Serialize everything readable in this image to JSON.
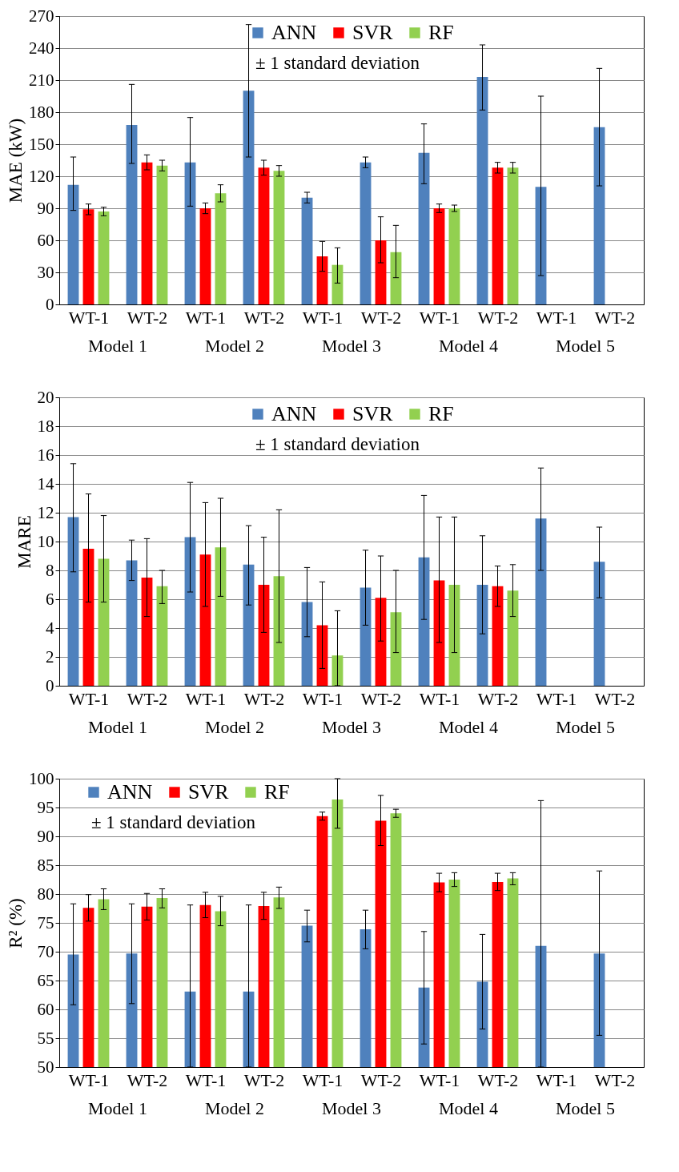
{
  "chart_data": [
    {
      "type": "bar",
      "ylabel": "MAE (kW)",
      "categories": [
        "WT-1",
        "WT-2",
        "WT-1",
        "WT-2",
        "WT-1",
        "WT-2",
        "WT-1",
        "WT-2",
        "WT-1",
        "WT-2"
      ],
      "annotations": [
        "± 1 standard deviation",
        "Model 1",
        "Model 2",
        "Model 3",
        "Model 4",
        "Model 5"
      ],
      "ylim": [
        0,
        270
      ],
      "yticks": [
        0,
        30,
        60,
        90,
        120,
        150,
        180,
        210,
        240,
        270
      ],
      "grid": "y",
      "legend": "top",
      "series": [
        {
          "name": "ANN",
          "color": "#4f81bd",
          "values": [
            112,
            168,
            133,
            200,
            100,
            133,
            142,
            213,
            110,
            166
          ],
          "errors": [
            [
              88,
              138
            ],
            [
              132,
              206
            ],
            [
              92,
              175
            ],
            [
              138,
              262
            ],
            [
              95,
              105
            ],
            [
              128,
              138
            ],
            [
              113,
              169
            ],
            [
              182,
              243
            ],
            [
              27,
              195
            ],
            [
              111,
              221
            ]
          ]
        },
        {
          "name": "SVR",
          "color": "#ff0000",
          "values": [
            89,
            133,
            90,
            128,
            45,
            60,
            90,
            128,
            null,
            null
          ],
          "errors": [
            [
              84,
              94
            ],
            [
              126,
              140
            ],
            [
              85,
              95
            ],
            [
              121,
              135
            ],
            [
              31,
              59
            ],
            [
              39,
              82
            ],
            [
              86,
              94
            ],
            [
              123,
              133
            ],
            null,
            null
          ]
        },
        {
          "name": "RF",
          "color": "#92d050",
          "values": [
            87,
            130,
            104,
            125,
            37,
            49,
            90,
            128,
            null,
            null
          ],
          "errors": [
            [
              83,
              91
            ],
            [
              125,
              135
            ],
            [
              96,
              112
            ],
            [
              120,
              130
            ],
            [
              20,
              53
            ],
            [
              25,
              74
            ],
            [
              87,
              93
            ],
            [
              123,
              133
            ],
            null,
            null
          ]
        }
      ]
    },
    {
      "type": "bar",
      "ylabel": "MARE",
      "categories": [
        "WT-1",
        "WT-2",
        "WT-1",
        "WT-2",
        "WT-1",
        "WT-2",
        "WT-1",
        "WT-2",
        "WT-1",
        "WT-2"
      ],
      "annotations": [
        "± 1 standard deviation",
        "Model 1",
        "Model 2",
        "Model 3",
        "Model 4",
        "Model 5"
      ],
      "ylim": [
        0,
        20
      ],
      "yticks": [
        0,
        2,
        4,
        6,
        8,
        10,
        12,
        14,
        16,
        18,
        20
      ],
      "grid": "y",
      "legend": "top",
      "series": [
        {
          "name": "ANN",
          "color": "#4f81bd",
          "values": [
            11.7,
            8.7,
            10.3,
            8.4,
            5.8,
            6.8,
            8.9,
            7.0,
            11.6,
            8.6
          ],
          "errors": [
            [
              7.9,
              15.4
            ],
            [
              7.3,
              10.1
            ],
            [
              6.5,
              14.1
            ],
            [
              5.6,
              11.1
            ],
            [
              3.4,
              8.2
            ],
            [
              4.2,
              9.4
            ],
            [
              4.6,
              13.2
            ],
            [
              3.6,
              10.4
            ],
            [
              8.0,
              15.1
            ],
            [
              6.1,
              11.0
            ]
          ]
        },
        {
          "name": "SVR",
          "color": "#ff0000",
          "values": [
            9.5,
            7.5,
            9.1,
            7.0,
            4.2,
            6.1,
            7.3,
            6.9,
            null,
            null
          ],
          "errors": [
            [
              5.8,
              13.3
            ],
            [
              4.8,
              10.2
            ],
            [
              5.5,
              12.7
            ],
            [
              3.7,
              10.3
            ],
            [
              1.2,
              7.2
            ],
            [
              3.1,
              9.0
            ],
            [
              3.0,
              11.7
            ],
            [
              5.5,
              8.3
            ],
            null,
            null
          ]
        },
        {
          "name": "RF",
          "color": "#92d050",
          "values": [
            8.8,
            6.9,
            9.6,
            7.6,
            2.1,
            5.1,
            7.0,
            6.6,
            null,
            null
          ],
          "errors": [
            [
              5.8,
              11.8
            ],
            [
              5.7,
              8.0
            ],
            [
              6.2,
              13.0
            ],
            [
              3.0,
              12.2
            ],
            [
              0,
              5.2
            ],
            [
              2.3,
              8.0
            ],
            [
              2.3,
              11.7
            ],
            [
              4.8,
              8.4
            ],
            null,
            null
          ]
        }
      ]
    },
    {
      "type": "bar",
      "ylabel": "R² (%)",
      "categories": [
        "WT-1",
        "WT-2",
        "WT-1",
        "WT-2",
        "WT-1",
        "WT-2",
        "WT-1",
        "WT-2",
        "WT-1",
        "WT-2"
      ],
      "annotations": [
        "± 1 standard deviation",
        "Model 1",
        "Model 2",
        "Model 3",
        "Model 4",
        "Model 5"
      ],
      "ylim": [
        50,
        100
      ],
      "yticks": [
        50,
        55,
        60,
        65,
        70,
        75,
        80,
        85,
        90,
        95,
        100
      ],
      "grid": "y",
      "legend": "top left",
      "series": [
        {
          "name": "ANN",
          "color": "#4f81bd",
          "values": [
            69.5,
            69.7,
            63.1,
            63.1,
            74.5,
            73.9,
            63.8,
            64.8,
            71.0,
            69.7
          ],
          "errors": [
            [
              60.8,
              78.3
            ],
            [
              61.0,
              78.3
            ],
            [
              50,
              78.1
            ],
            [
              50,
              78.1
            ],
            [
              71.7,
              77.2
            ],
            [
              70.5,
              77.2
            ],
            [
              54.0,
              73.5
            ],
            [
              56.6,
              73.0
            ],
            [
              50,
              96.2
            ],
            [
              55.5,
              84.0
            ]
          ]
        },
        {
          "name": "SVR",
          "color": "#ff0000",
          "values": [
            77.6,
            77.8,
            78.1,
            77.9,
            93.5,
            92.7,
            82.0,
            82.1,
            null,
            null
          ],
          "errors": [
            [
              75.3,
              79.9
            ],
            [
              75.5,
              80.1
            ],
            [
              75.9,
              80.3
            ],
            [
              75.6,
              80.3
            ],
            [
              92.8,
              94.2
            ],
            [
              88.4,
              97.1
            ],
            [
              80.4,
              83.6
            ],
            [
              80.6,
              83.6
            ],
            null,
            null
          ]
        },
        {
          "name": "RF",
          "color": "#92d050",
          "values": [
            79.1,
            79.3,
            77.0,
            79.4,
            96.4,
            94.0,
            82.5,
            82.7,
            null,
            null
          ],
          "errors": [
            [
              77.3,
              80.9
            ],
            [
              77.6,
              80.9
            ],
            [
              74.5,
              79.6
            ],
            [
              77.5,
              81.2
            ],
            [
              91.4,
              100
            ],
            [
              93.3,
              94.7
            ],
            [
              81.3,
              83.7
            ],
            [
              81.6,
              83.7
            ],
            null,
            null
          ]
        }
      ]
    }
  ]
}
